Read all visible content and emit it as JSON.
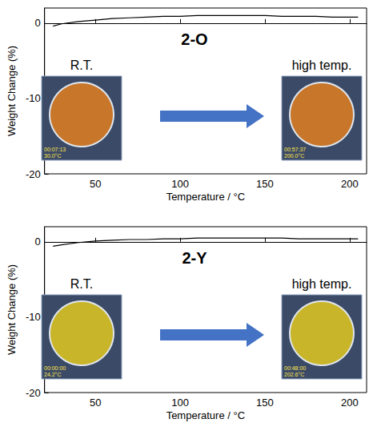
{
  "chart_data": [
    {
      "type": "line",
      "title": "2-O",
      "xlabel": "Temperature / °C",
      "ylabel": "Weight Change (%)",
      "x": [
        25,
        30,
        40,
        50,
        60,
        70,
        80,
        90,
        100,
        110,
        120,
        130,
        140,
        150,
        160,
        170,
        180,
        190,
        200,
        205
      ],
      "values": [
        -0.4,
        -0.1,
        0.2,
        0.4,
        0.6,
        0.7,
        0.8,
        0.9,
        0.9,
        1.0,
        1.0,
        1.0,
        1.0,
        1.0,
        0.9,
        0.9,
        0.9,
        0.8,
        0.8,
        0.8
      ],
      "color": "#000000",
      "xlim": [
        20,
        210
      ],
      "xticks": [
        50,
        100,
        150,
        200
      ],
      "ylim": [
        -20,
        2
      ],
      "yticks": [
        -20,
        -10,
        0
      ],
      "grid": false,
      "annotations": [
        {
          "text": "R.T.",
          "stamp": [
            "00:07:13",
            "30.0°C"
          ]
        },
        {
          "text": "high temp.",
          "stamp": [
            "00:57:37",
            "200.0°C"
          ]
        }
      ]
    },
    {
      "type": "line",
      "title": "2-Y",
      "xlabel": "Temperature / °C",
      "ylabel": "Weight Change (%)",
      "x": [
        25,
        30,
        40,
        50,
        60,
        70,
        80,
        90,
        100,
        110,
        120,
        130,
        140,
        150,
        160,
        170,
        180,
        190,
        200,
        205
      ],
      "values": [
        -0.6,
        -0.4,
        -0.1,
        0.1,
        0.2,
        0.3,
        0.3,
        0.4,
        0.4,
        0.5,
        0.5,
        0.5,
        0.5,
        0.5,
        0.5,
        0.4,
        0.4,
        0.4,
        0.4,
        0.4
      ],
      "color": "#000000",
      "xlim": [
        20,
        210
      ],
      "xticks": [
        50,
        100,
        150,
        200
      ],
      "ylim": [
        -20,
        2
      ],
      "yticks": [
        -20,
        -10,
        0
      ],
      "grid": false,
      "annotations": [
        {
          "text": "R.T.",
          "stamp": [
            "00:00:00",
            "24.2°C"
          ]
        },
        {
          "text": "high temp.",
          "stamp": [
            "00:48:00",
            "202.6°C"
          ]
        }
      ]
    }
  ]
}
